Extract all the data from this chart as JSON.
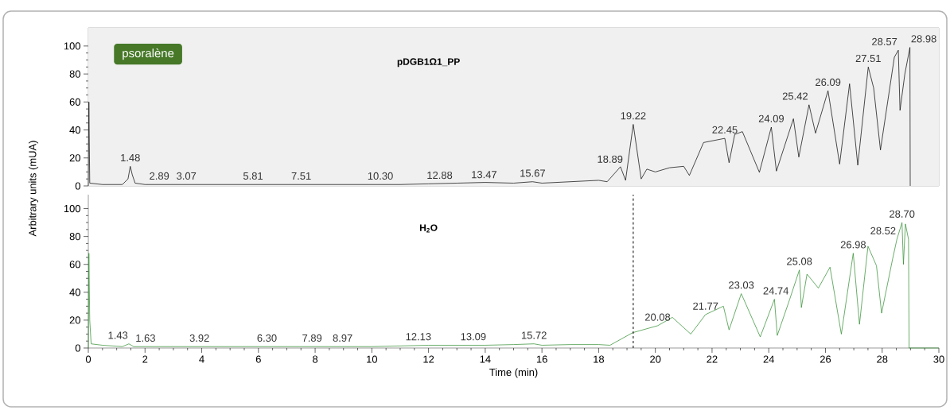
{
  "chart_data": [
    {
      "type": "line",
      "title": "pDGB1Ω1_PP",
      "xlim": [
        0,
        30
      ],
      "ylim": [
        0,
        113
      ],
      "yticks": [
        0,
        20,
        40,
        60,
        80,
        100
      ],
      "tick_labels": "y",
      "marker": "none",
      "series": [
        {
          "color": "#000000",
          "x": [
            0,
            0.02,
            0.05,
            0.5,
            1.2,
            1.4,
            1.48,
            1.55,
            1.65,
            2,
            3,
            4,
            5,
            6,
            7,
            8,
            9,
            10,
            11,
            12,
            13,
            14,
            15,
            15.67,
            16,
            17,
            18,
            18.3,
            18.77,
            18.95,
            19.22,
            19.5,
            19.7,
            20,
            20.5,
            21,
            21.2,
            21.7,
            22.45,
            22.6,
            22.8,
            23.07,
            23.67,
            24.09,
            24.27,
            24.87,
            25.06,
            25.42,
            25.65,
            26.09,
            26.5,
            26.85,
            27.14,
            27.51,
            27.7,
            27.94,
            28.43,
            28.57,
            28.63,
            28.8,
            28.98,
            28.99
          ],
          "values": [
            0,
            60,
            2,
            1,
            1,
            5,
            14,
            8,
            2,
            1,
            1,
            1,
            1,
            1,
            1,
            1,
            1,
            1,
            1,
            1.5,
            2,
            2.5,
            2,
            3,
            2,
            3,
            4,
            3,
            13.7,
            4,
            44,
            5,
            12,
            10,
            13,
            14,
            7.5,
            31,
            34,
            16.6,
            36.8,
            38.8,
            9.7,
            42,
            10.6,
            48,
            20.6,
            58,
            37.7,
            68,
            15.6,
            73,
            14.8,
            85,
            70,
            25.7,
            92,
            97,
            54,
            80,
            99,
            0
          ]
        }
      ],
      "annotations": [
        "psoralène",
        {
          "text": "1.48",
          "x": 1.48,
          "y": 14
        },
        {
          "text": "2.89",
          "x": 2.89,
          "y": 1
        },
        {
          "text": "3.07",
          "x": 3.07,
          "y": 1
        },
        {
          "text": "5.81",
          "x": 5.81,
          "y": 1
        },
        {
          "text": "7.51",
          "x": 7.51,
          "y": 1
        },
        {
          "text": "10.30",
          "x": 10.3,
          "y": 1
        },
        {
          "text": "12.88",
          "x": 12.88,
          "y": 1.5
        },
        {
          "text": "13.47",
          "x": 13.47,
          "y": 2
        },
        {
          "text": "15.67",
          "x": 15.67,
          "y": 3
        },
        {
          "text": "18.89",
          "x": 18.89,
          "y": 13
        },
        {
          "text": "19.22",
          "x": 19.22,
          "y": 44
        },
        {
          "text": "22.45",
          "x": 22.45,
          "y": 34
        },
        {
          "text": "24.09",
          "x": 24.09,
          "y": 42
        },
        {
          "text": "25.42",
          "x": 25.42,
          "y": 58
        },
        {
          "text": "26.09",
          "x": 26.09,
          "y": 68
        },
        {
          "text": "27.51",
          "x": 27.51,
          "y": 85
        },
        {
          "text": "28.57",
          "x": 28.57,
          "y": 97
        },
        {
          "text": "28.98",
          "x": 28.98,
          "y": 99
        }
      ]
    },
    {
      "type": "line",
      "title": "H$_{2}$O",
      "xlabel": "Time (min)",
      "ylabel": "Arbitrary units (mUA)",
      "xlim": [
        0,
        30
      ],
      "ylim": [
        0,
        110
      ],
      "xticks": [
        0,
        2,
        4,
        6,
        8,
        10,
        12,
        14,
        16,
        18,
        20,
        22,
        24,
        26,
        28,
        30
      ],
      "yticks": [
        0,
        20,
        40,
        60,
        80,
        100
      ],
      "marker": "none",
      "series": [
        {
          "color": "#2a8a2a",
          "x": [
            0,
            0.02,
            0.05,
            0.1,
            0.5,
            1.2,
            1.43,
            1.6,
            2,
            4,
            6,
            8,
            10,
            12,
            13,
            14,
            15,
            15.72,
            16,
            17,
            18,
            18.4,
            19.2,
            20.08,
            20.6,
            21.25,
            21.77,
            22.4,
            22.6,
            23.03,
            23.7,
            24.2,
            24.3,
            24.74,
            25.08,
            25.15,
            25.35,
            25.75,
            26.16,
            26.56,
            26.98,
            27.2,
            27.5,
            27.8,
            27.98,
            28.37,
            28.52,
            28.7,
            28.75,
            28.82,
            28.93,
            28.95,
            30
          ],
          "values": [
            0,
            68,
            20,
            3,
            2,
            1,
            3,
            1,
            1,
            1,
            1,
            1,
            1,
            2,
            2,
            2,
            2.5,
            3,
            2,
            2.5,
            2.5,
            2,
            11,
            16,
            22,
            10,
            24,
            30,
            13,
            39,
            8,
            35,
            9,
            35,
            56,
            29,
            53,
            43,
            58,
            10,
            68,
            17,
            73,
            59,
            25,
            64,
            78,
            90,
            60,
            89,
            78,
            0,
            0
          ]
        }
      ],
      "ref_lines": [
        {
          "axis": "x",
          "value": 19.22,
          "line_style": "dashed",
          "color": "#000000"
        }
      ],
      "annotations": [
        {
          "text": "1.43",
          "x": 1.43,
          "y": 3
        },
        {
          "text": "1.63",
          "x": 1.63,
          "y": 1
        },
        {
          "text": "3.92",
          "x": 3.92,
          "y": 1
        },
        {
          "text": "6.30",
          "x": 6.3,
          "y": 1
        },
        {
          "text": "7.89",
          "x": 7.89,
          "y": 1
        },
        {
          "text": "8.97",
          "x": 8.97,
          "y": 1
        },
        {
          "text": "12.13",
          "x": 12.13,
          "y": 2
        },
        {
          "text": "13.09",
          "x": 13.09,
          "y": 2
        },
        {
          "text": "15.72",
          "x": 15.72,
          "y": 3
        },
        {
          "text": "20.08",
          "x": 20.08,
          "y": 16
        },
        {
          "text": "21.77",
          "x": 21.77,
          "y": 24
        },
        {
          "text": "23.03",
          "x": 23.03,
          "y": 39
        },
        {
          "text": "24.74",
          "x": 24.74,
          "y": 35
        },
        {
          "text": "25.08",
          "x": 25.08,
          "y": 56
        },
        {
          "text": "26.98",
          "x": 26.98,
          "y": 68
        },
        {
          "text": "28.52",
          "x": 28.52,
          "y": 78
        },
        {
          "text": "28.70",
          "x": 28.7,
          "y": 90
        }
      ]
    }
  ]
}
